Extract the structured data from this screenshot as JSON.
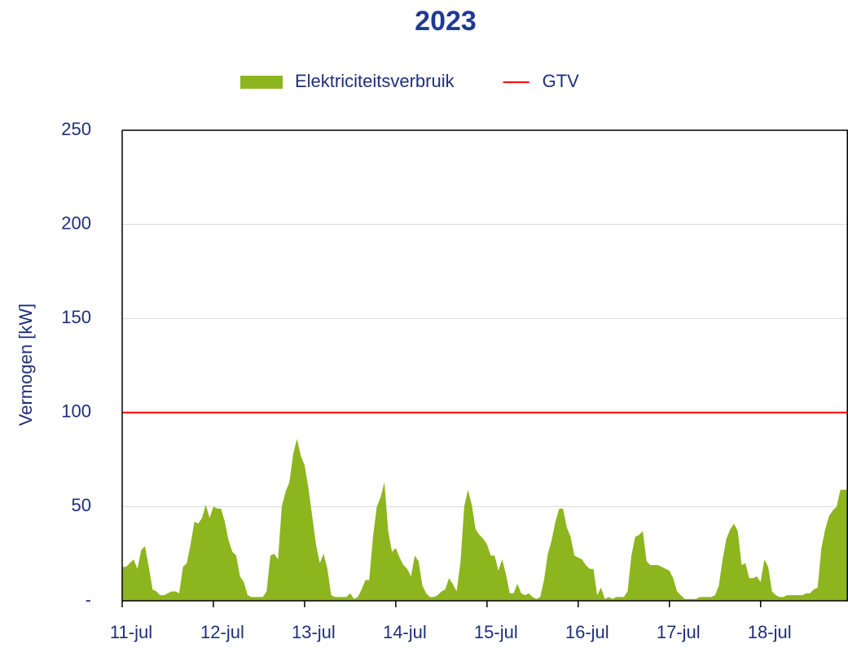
{
  "chart_data": {
    "type": "area",
    "title": "2023",
    "y_label": "Vermogen [kW]",
    "x": [
      0,
      1,
      2,
      3,
      4,
      5,
      6,
      7,
      8,
      9,
      10,
      11,
      12,
      13,
      14,
      15,
      16,
      17,
      18,
      19,
      20,
      21,
      22,
      23,
      24,
      25,
      26,
      27,
      28,
      29,
      30,
      31,
      32,
      33,
      34,
      35,
      36,
      37,
      38,
      39,
      40,
      41,
      42,
      43,
      44,
      45,
      46,
      47,
      48,
      49,
      50,
      51,
      52,
      53,
      54,
      55,
      56,
      57,
      58,
      59,
      60,
      61,
      62,
      63,
      64,
      65,
      66,
      67,
      68,
      69,
      70,
      71,
      72,
      73,
      74,
      75,
      76,
      77,
      78,
      79,
      80,
      81,
      82,
      83,
      84,
      85,
      86,
      87,
      88,
      89,
      90,
      91,
      92,
      93,
      94,
      95,
      96,
      97,
      98,
      99,
      100,
      101,
      102,
      103,
      104,
      105,
      106,
      107,
      108,
      109,
      110,
      111,
      112,
      113,
      114,
      115,
      116,
      117,
      118,
      119,
      120,
      121,
      122,
      123,
      124,
      125,
      126,
      127,
      128,
      129,
      130,
      131,
      132,
      133,
      134,
      135,
      136,
      137,
      138,
      139,
      140,
      141,
      142,
      143,
      144,
      145,
      146,
      147,
      148,
      149,
      150,
      151,
      152,
      153,
      154,
      155,
      156,
      157,
      158,
      159,
      160,
      161,
      162,
      163,
      164,
      165,
      166,
      167,
      168,
      169,
      170,
      171,
      172,
      173,
      174,
      175,
      176,
      177,
      178,
      179,
      180,
      181,
      182,
      183,
      184,
      185,
      186,
      187,
      188,
      189,
      190,
      191
    ],
    "series": [
      {
        "name": "Elektriciteitsverbruik",
        "color": "#8db51e",
        "values": [
          18,
          18,
          20,
          22,
          17,
          27,
          29,
          18,
          6,
          5,
          3,
          3,
          4,
          5,
          5,
          4,
          18,
          20,
          30,
          42,
          41,
          44,
          51,
          44,
          50,
          49,
          49,
          42,
          32,
          26,
          24,
          13,
          10,
          3,
          2,
          2,
          2,
          2,
          5,
          24,
          25,
          22,
          50,
          58,
          63,
          78,
          86,
          77,
          72,
          60,
          45,
          30,
          20,
          25,
          17,
          3,
          2,
          2,
          2,
          2,
          4,
          1,
          2,
          6,
          11,
          11,
          34,
          50,
          55,
          63,
          37,
          26,
          28,
          23,
          19,
          17,
          13,
          24,
          21,
          8,
          4,
          2,
          2,
          3,
          5,
          6,
          12,
          9,
          5,
          20,
          50,
          59,
          51,
          38,
          35,
          33,
          30,
          24,
          24,
          16,
          22,
          14,
          4,
          4,
          9,
          4,
          3,
          4,
          2,
          1,
          2,
          11,
          25,
          32,
          42,
          49,
          49,
          39,
          34,
          24,
          23,
          22,
          19,
          17,
          17,
          3,
          7,
          1,
          2,
          1,
          2,
          2,
          2,
          5,
          24,
          34,
          35,
          37,
          21,
          19,
          19,
          19,
          18,
          17,
          16,
          12,
          5,
          3,
          1,
          1,
          1,
          1,
          2,
          2,
          2,
          2,
          3,
          8,
          22,
          33,
          38,
          41,
          37,
          19,
          20,
          12,
          12,
          13,
          10,
          22,
          18,
          5,
          3,
          2,
          2,
          3,
          3,
          3,
          3,
          3,
          4,
          4,
          6,
          7,
          28,
          38,
          45,
          48,
          50,
          59,
          59,
          59
        ]
      }
    ],
    "reference_lines": [
      {
        "name": "GTV",
        "color": "#ff0000",
        "value": 100
      }
    ],
    "xlim": [
      0,
      191
    ],
    "xticks": [
      {
        "value": 0,
        "label": "11-jul"
      },
      {
        "value": 24,
        "label": "12-jul"
      },
      {
        "value": 48,
        "label": "13-jul"
      },
      {
        "value": 72,
        "label": "14-jul"
      },
      {
        "value": 96,
        "label": "15-jul"
      },
      {
        "value": 120,
        "label": "16-jul"
      },
      {
        "value": 144,
        "label": "17-jul"
      },
      {
        "value": 168,
        "label": "18-jul"
      }
    ],
    "ylim": [
      0,
      250
    ],
    "yticks": [
      {
        "value": 0,
        "label": "-"
      },
      50,
      100,
      150,
      200,
      250
    ],
    "grid": true,
    "legend": "top"
  }
}
